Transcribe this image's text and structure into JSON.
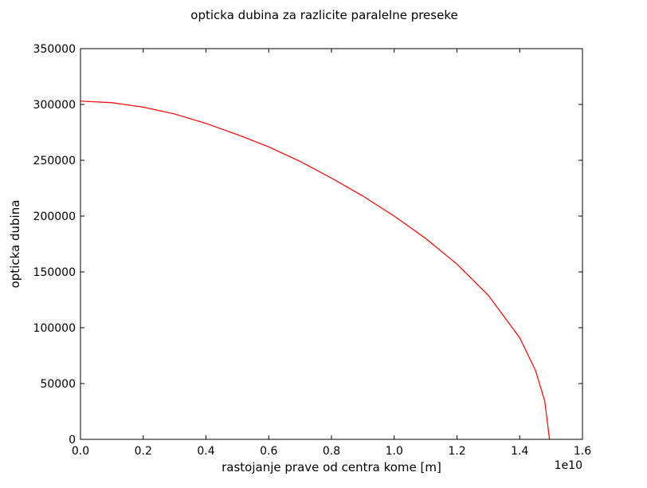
{
  "chart_data": {
    "type": "line",
    "title": "opticka dubina za razlicite paralelne preseke",
    "xlabel": "rastojanje prave od centra kome [m]",
    "ylabel": "opticka dubina",
    "x_offset_label": "1e10",
    "xlim": [
      0,
      16000000000
    ],
    "ylim": [
      0,
      350000
    ],
    "xticks": [
      0,
      2000000000,
      4000000000,
      6000000000,
      8000000000,
      10000000000,
      12000000000,
      14000000000,
      16000000000
    ],
    "xtick_labels": [
      "0.0",
      "0.2",
      "0.4",
      "0.6",
      "0.8",
      "1.0",
      "1.2",
      "1.4",
      "1.6"
    ],
    "yticks": [
      0,
      50000,
      100000,
      150000,
      200000,
      250000,
      300000,
      350000
    ],
    "ytick_labels": [
      "0",
      "50000",
      "100000",
      "150000",
      "200000",
      "250000",
      "300000",
      "350000"
    ],
    "grid": false,
    "series": [
      {
        "color": "#ff0000",
        "x": [
          0,
          1000000000,
          2000000000,
          3000000000,
          4000000000,
          5000000000,
          6000000000,
          7000000000,
          8000000000,
          9000000000,
          10000000000,
          11000000000,
          12000000000,
          13000000000,
          14000000000,
          14500000000,
          14800000000,
          14950000000
        ],
        "y": [
          303000,
          301600,
          297600,
          291500,
          283000,
          273000,
          262000,
          249000,
          234000,
          218000,
          200000,
          180000,
          157000,
          129000,
          91000,
          62000,
          34000,
          0
        ]
      }
    ]
  }
}
